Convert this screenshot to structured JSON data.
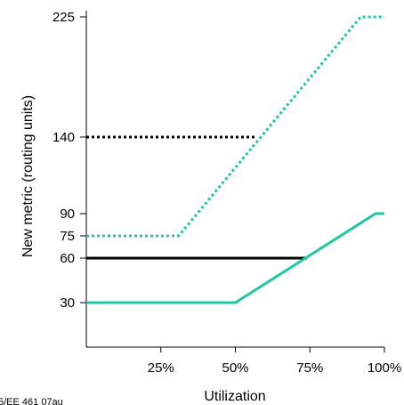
{
  "chart_data": {
    "type": "line",
    "xlabel": "Utilization",
    "ylabel": "New metric (routing units)",
    "xlim": [
      0,
      100
    ],
    "ylim": [
      0,
      225
    ],
    "x_ticks": [
      {
        "value": 25,
        "label": "25%"
      },
      {
        "value": 50,
        "label": "50%"
      },
      {
        "value": 75,
        "label": "75%"
      },
      {
        "value": 100,
        "label": "100%"
      }
    ],
    "y_ticks": [
      30,
      60,
      75,
      90,
      140,
      225
    ],
    "grid": false,
    "series": [
      {
        "color": "#1fc8a0",
        "style": "dotted",
        "x": [
          0,
          31,
          92,
          100
        ],
        "y": [
          75,
          75,
          225,
          225
        ]
      },
      {
        "color": "#000000",
        "style": "dotted",
        "x": [
          0,
          57
        ],
        "y": [
          140,
          140
        ]
      },
      {
        "color": "#000000",
        "style": "solid",
        "x": [
          0,
          74
        ],
        "y": [
          60,
          60
        ]
      },
      {
        "color": "#1fc8a0",
        "style": "solid",
        "x": [
          0,
          50,
          97,
          100
        ],
        "y": [
          30,
          30,
          90,
          90
        ]
      }
    ]
  },
  "credit": "5/EE 461 07au"
}
